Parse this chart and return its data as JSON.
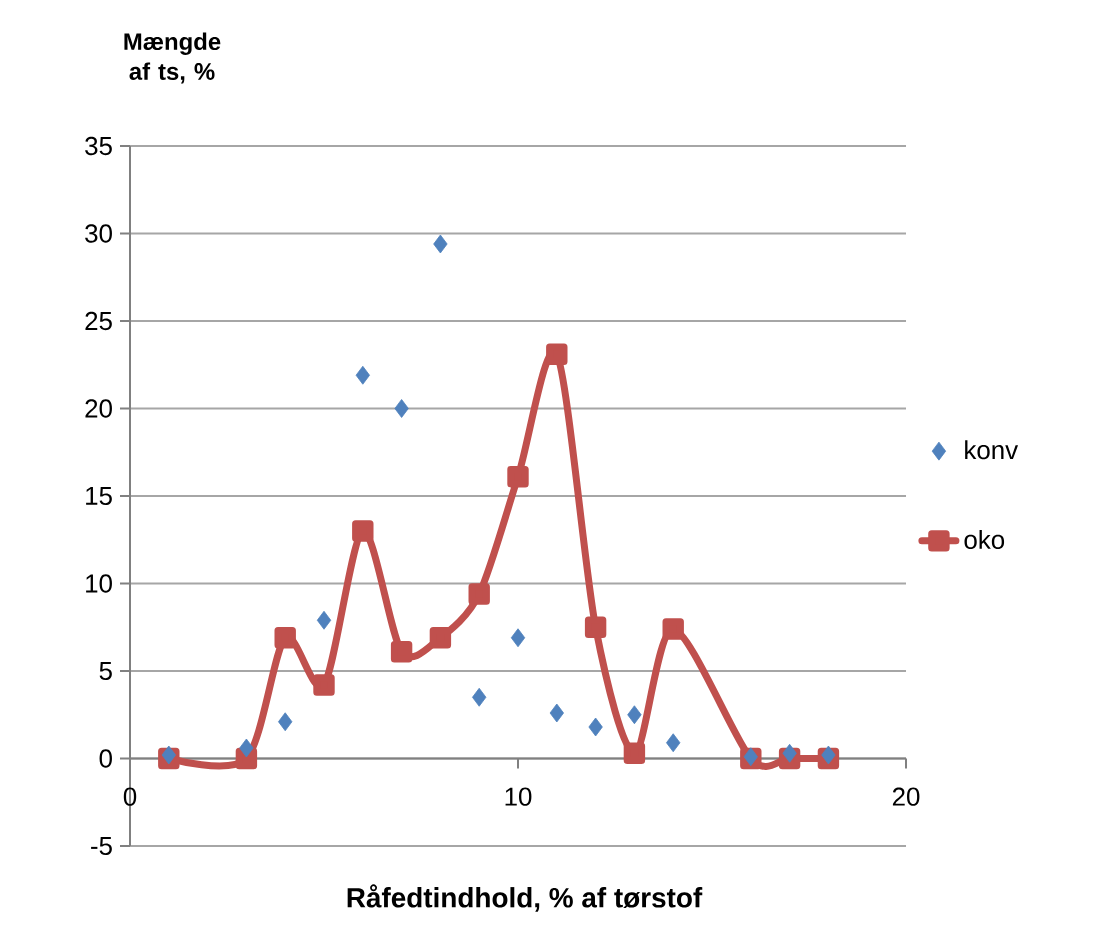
{
  "chart_data": {
    "type": "scatter",
    "xlabel": "Råfedtindhold, % af tørstof",
    "ylabel": "Mængde af ts, %",
    "x": [
      1,
      3,
      4,
      5,
      6,
      7,
      8,
      9,
      10,
      11,
      12,
      13,
      14,
      16,
      17,
      18
    ],
    "series": [
      {
        "name": "konv",
        "color": "#4f81bd",
        "marker": "diamond",
        "values": [
          0.2,
          0.6,
          2.1,
          7.9,
          21.9,
          20.0,
          29.4,
          3.5,
          6.9,
          2.6,
          1.8,
          2.5,
          0.9,
          0.1,
          0.3,
          0.2
        ]
      },
      {
        "name": "oko",
        "type": "line",
        "color": "#c0504d",
        "marker": "square",
        "line_style": "solid",
        "values": [
          0,
          0,
          6.9,
          4.2,
          13.0,
          6.1,
          6.9,
          9.4,
          16.1,
          23.1,
          7.5,
          0.3,
          7.4,
          0,
          0,
          0
        ]
      }
    ],
    "xlim": [
      0,
      20
    ],
    "xticks": [
      0,
      10,
      20
    ],
    "ylim": [
      -5,
      35
    ],
    "yticks": [
      -5,
      0,
      5,
      10,
      15,
      20,
      25,
      30,
      35
    ],
    "grid": "y",
    "legend": "right"
  }
}
